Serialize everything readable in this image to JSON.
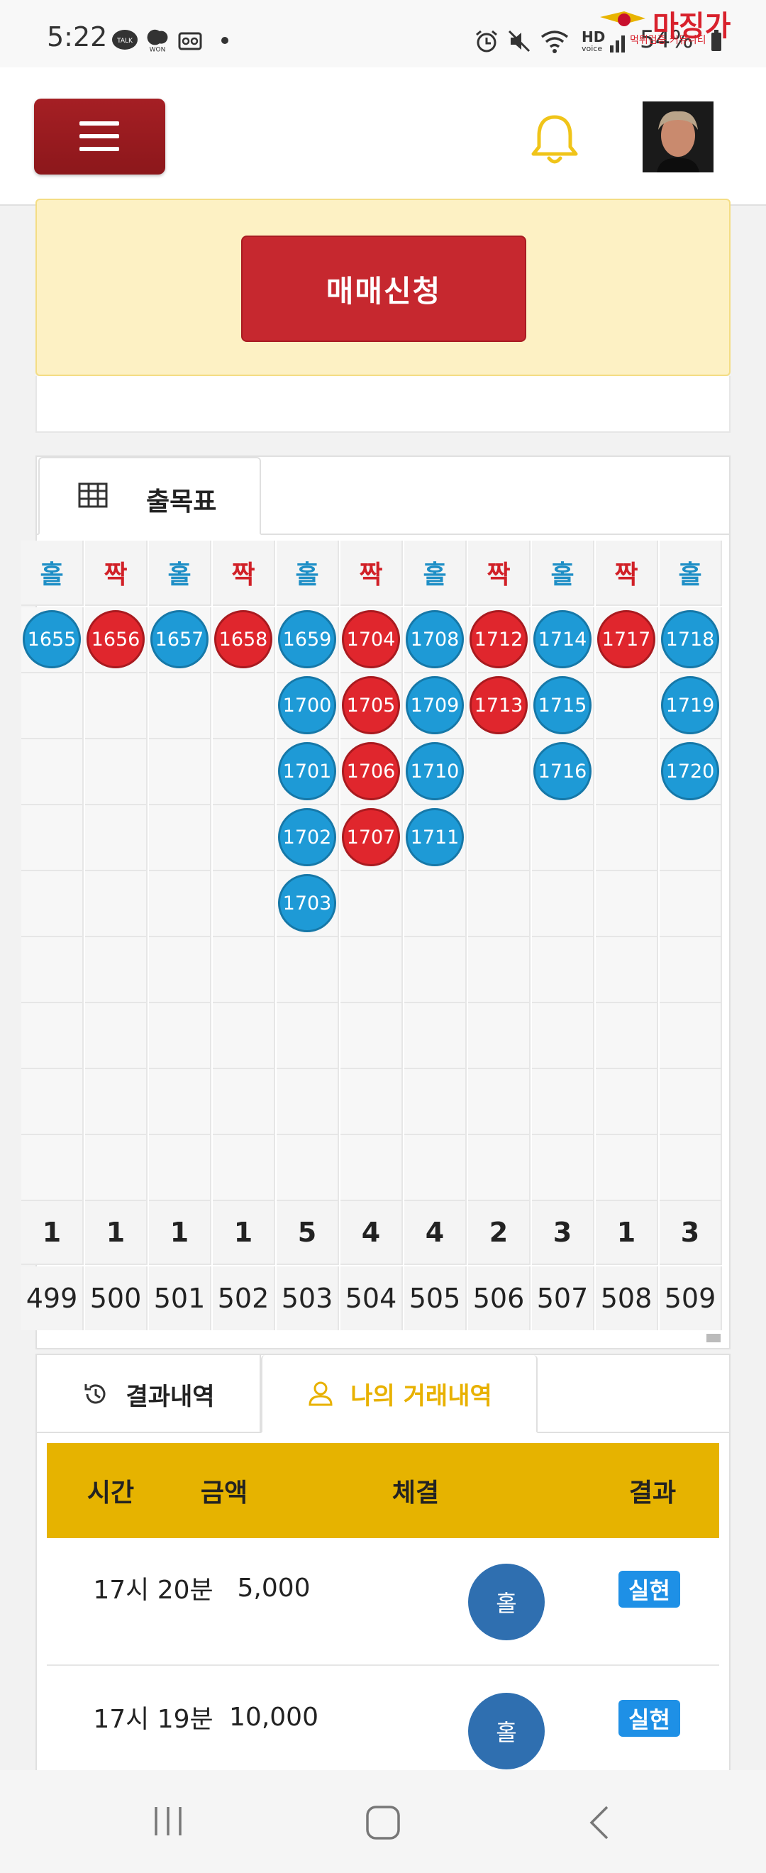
{
  "status_bar": {
    "time": "5:22",
    "icons": [
      "talk-icon",
      "won-icon",
      "voicemail-icon",
      "alarm-icon",
      "mute-icon",
      "wifi-icon",
      "signal-icon",
      "battery-icon"
    ],
    "hd_label": "HD",
    "voice_label": "voice",
    "battery": "54%",
    "watermark": "마징가",
    "watermark_sub": "먹튀검증 커뮤니티"
  },
  "header": {
    "menu_icon": "hamburger-icon",
    "bell_icon": "bell-icon",
    "avatar": "user-avatar"
  },
  "colors": {
    "brand_red": "#a51f24",
    "odd_blue": "#1e9ad6",
    "even_red": "#e0262d",
    "accent_gold": "#e6b300",
    "badge_blue": "#1e90e6"
  },
  "trade_button": "매매신청",
  "board_tab": {
    "label": "출목표",
    "icon": "grid-table-icon"
  },
  "board": {
    "columns": [
      {
        "head": "홀",
        "type": "odd",
        "balls": [
          "1655"
        ],
        "count": "1",
        "index": "499"
      },
      {
        "head": "짝",
        "type": "even",
        "balls": [
          "1656"
        ],
        "count": "1",
        "index": "500"
      },
      {
        "head": "홀",
        "type": "odd",
        "balls": [
          "1657"
        ],
        "count": "1",
        "index": "501"
      },
      {
        "head": "짝",
        "type": "even",
        "balls": [
          "1658"
        ],
        "count": "1",
        "index": "502"
      },
      {
        "head": "홀",
        "type": "odd",
        "balls": [
          "1659",
          "1700",
          "1701",
          "1702",
          "1703"
        ],
        "count": "5",
        "index": "503"
      },
      {
        "head": "짝",
        "type": "even",
        "balls": [
          "1704",
          "1705",
          "1706",
          "1707"
        ],
        "count": "4",
        "index": "504"
      },
      {
        "head": "홀",
        "type": "odd",
        "balls": [
          "1708",
          "1709",
          "1710",
          "1711"
        ],
        "count": "4",
        "index": "505"
      },
      {
        "head": "짝",
        "type": "even",
        "balls": [
          "1712",
          "1713"
        ],
        "count": "2",
        "index": "506"
      },
      {
        "head": "홀",
        "type": "odd",
        "balls": [
          "1714",
          "1715",
          "1716"
        ],
        "count": "3",
        "index": "507"
      },
      {
        "head": "짝",
        "type": "even",
        "balls": [
          "1717"
        ],
        "count": "1",
        "index": "508"
      },
      {
        "head": "홀",
        "type": "odd",
        "balls": [
          "1718",
          "1719",
          "1720"
        ],
        "count": "3",
        "index": "509"
      }
    ]
  },
  "history": {
    "tabs": [
      {
        "label": "결과내역",
        "icon": "history-clock-icon",
        "active": false
      },
      {
        "label": "나의 거래내역",
        "icon": "user-outline-icon",
        "active": true
      }
    ],
    "headers": [
      "시간",
      "금액",
      "체결",
      "결과"
    ],
    "rows": [
      {
        "time": "17시 20분",
        "amount": "5,000",
        "pick": "홀",
        "result": "실현"
      },
      {
        "time": "17시 19분",
        "amount": "10,000",
        "pick": "홀",
        "result": "실현"
      }
    ]
  },
  "nav": {
    "icons": [
      "recent-apps-icon",
      "home-icon",
      "back-icon"
    ]
  }
}
